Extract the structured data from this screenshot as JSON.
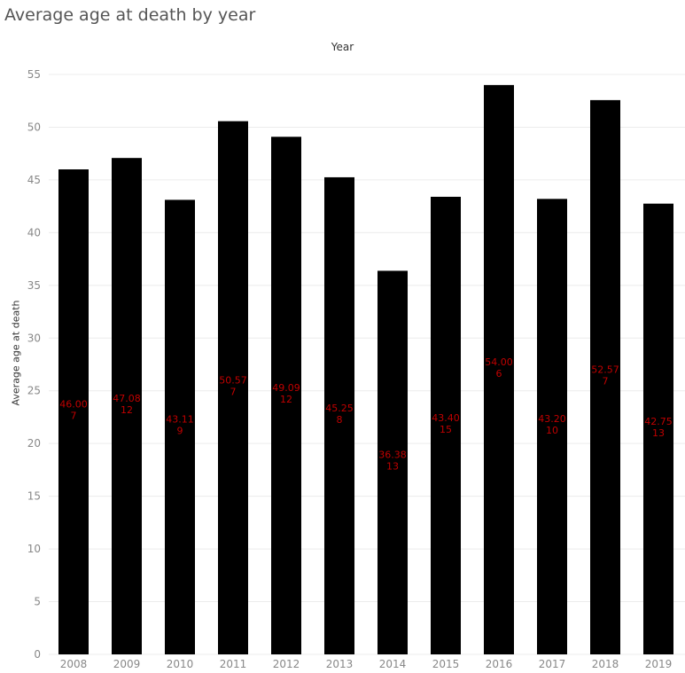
{
  "chart_data": {
    "type": "bar",
    "title": "Average age at death by year",
    "column_header": "Year",
    "ylabel": "Average age at death",
    "xlabel": "",
    "ylim": [
      0,
      55
    ],
    "yticks": [
      "0",
      "5",
      "10",
      "15",
      "20",
      "25",
      "30",
      "35",
      "40",
      "45",
      "50",
      "55"
    ],
    "categories": [
      "2008",
      "2009",
      "2010",
      "2011",
      "2012",
      "2013",
      "2014",
      "2015",
      "2016",
      "2017",
      "2018",
      "2019"
    ],
    "values": [
      46.0,
      47.08,
      43.11,
      50.57,
      49.09,
      45.25,
      36.38,
      43.4,
      54.0,
      43.2,
      52.57,
      42.75
    ],
    "value_labels": [
      "46.00",
      "47.08",
      "43.11",
      "50.57",
      "49.09",
      "45.25",
      "36.38",
      "43.40",
      "54.00",
      "43.20",
      "52.57",
      "42.75"
    ],
    "count_labels": [
      "7",
      "12",
      "9",
      "7",
      "12",
      "8",
      "13",
      "15",
      "6",
      "10",
      "7",
      "13"
    ],
    "grid": true,
    "legend": "none",
    "colors": {
      "bar": "#000000",
      "label": "#c00000",
      "grid": "#ececec",
      "tick": "#888888"
    }
  }
}
